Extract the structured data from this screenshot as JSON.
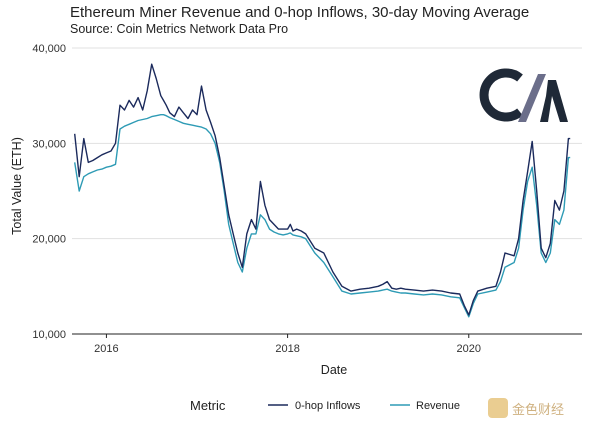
{
  "header": {
    "title": "Ethereum Miner Revenue and 0-hop Inflows, 30-day Moving Average",
    "subtitle": "Source: Coin Metrics Network Data Pro"
  },
  "logo": {
    "text": "CM",
    "colors": {
      "dark": "#1f2937",
      "accent": "#6b6e8a"
    }
  },
  "watermark": {
    "text": "金色财经"
  },
  "legend": {
    "title": "Metric"
  },
  "colors": {
    "inflows": "#1b2a5c",
    "revenue": "#2e9bb5",
    "grid": "#e1e1e1",
    "axis": "#222222"
  },
  "chart_data": {
    "type": "line",
    "xlabel": "Date",
    "ylabel": "Total Value (ETH)",
    "xlim": [
      2015.62,
      2021.25
    ],
    "ylim": [
      10000,
      40000
    ],
    "x_ticks": [
      2016,
      2018,
      2020
    ],
    "x_tick_labels": [
      "2016",
      "2018",
      "2020"
    ],
    "y_ticks": [
      10000,
      20000,
      30000,
      40000
    ],
    "y_tick_labels": [
      "10,000",
      "20,000",
      "30,000",
      "40,000"
    ],
    "grid": "horizontal",
    "legend_position": "bottom",
    "series": [
      {
        "name": "0-hop Inflows",
        "x": [
          2015.65,
          2015.7,
          2015.75,
          2015.8,
          2015.85,
          2015.9,
          2015.95,
          2016.0,
          2016.05,
          2016.1,
          2016.15,
          2016.2,
          2016.25,
          2016.3,
          2016.35,
          2016.4,
          2016.45,
          2016.5,
          2016.55,
          2016.6,
          2016.63,
          2016.66,
          2016.7,
          2016.75,
          2016.8,
          2016.85,
          2016.9,
          2016.95,
          2017.0,
          2017.05,
          2017.1,
          2017.15,
          2017.2,
          2017.25,
          2017.3,
          2017.35,
          2017.4,
          2017.45,
          2017.5,
          2017.55,
          2017.6,
          2017.65,
          2017.7,
          2017.75,
          2017.8,
          2017.85,
          2017.9,
          2017.95,
          2018.0,
          2018.03,
          2018.06,
          2018.1,
          2018.15,
          2018.2,
          2018.3,
          2018.4,
          2018.5,
          2018.6,
          2018.7,
          2018.8,
          2018.9,
          2019.0,
          2019.05,
          2019.1,
          2019.15,
          2019.2,
          2019.25,
          2019.3,
          2019.4,
          2019.5,
          2019.6,
          2019.7,
          2019.8,
          2019.9,
          2019.95,
          2020.0,
          2020.05,
          2020.1,
          2020.2,
          2020.3,
          2020.35,
          2020.4,
          2020.5,
          2020.55,
          2020.6,
          2020.65,
          2020.7,
          2020.75,
          2020.8,
          2020.85,
          2020.9,
          2020.95,
          2021.0,
          2021.05,
          2021.1,
          2021.12
        ],
        "values": [
          31000,
          26500,
          30500,
          28000,
          28200,
          28500,
          28800,
          29000,
          29200,
          30000,
          34000,
          33500,
          34500,
          33800,
          34800,
          33500,
          35500,
          38300,
          36800,
          35000,
          34500,
          34000,
          33200,
          32800,
          33800,
          33200,
          32600,
          33500,
          33000,
          36000,
          33500,
          32200,
          30800,
          28500,
          25500,
          22500,
          20500,
          18500,
          17000,
          20500,
          22000,
          21000,
          26000,
          23500,
          22000,
          21500,
          21000,
          21000,
          21000,
          21500,
          20800,
          21000,
          20800,
          20500,
          19000,
          18500,
          16500,
          15000,
          14500,
          14700,
          14800,
          15000,
          15200,
          15500,
          14800,
          14700,
          14800,
          14700,
          14600,
          14500,
          14600,
          14500,
          14300,
          14200,
          13000,
          12000,
          13500,
          14500,
          14800,
          15000,
          16500,
          18500,
          18200,
          20000,
          24000,
          27000,
          30200,
          25000,
          19000,
          18000,
          19500,
          24000,
          23000,
          25000,
          30500,
          30500
        ]
      },
      {
        "name": "Revenue",
        "x": [
          2015.65,
          2015.7,
          2015.75,
          2015.8,
          2015.85,
          2015.9,
          2015.95,
          2016.0,
          2016.05,
          2016.1,
          2016.15,
          2016.2,
          2016.25,
          2016.3,
          2016.35,
          2016.4,
          2016.45,
          2016.5,
          2016.55,
          2016.6,
          2016.63,
          2016.66,
          2016.7,
          2016.75,
          2016.8,
          2016.85,
          2016.9,
          2016.95,
          2017.0,
          2017.05,
          2017.1,
          2017.15,
          2017.2,
          2017.25,
          2017.3,
          2017.35,
          2017.4,
          2017.45,
          2017.5,
          2017.55,
          2017.6,
          2017.65,
          2017.7,
          2017.75,
          2017.8,
          2017.85,
          2017.9,
          2017.95,
          2018.0,
          2018.03,
          2018.06,
          2018.1,
          2018.15,
          2018.2,
          2018.3,
          2018.4,
          2018.5,
          2018.6,
          2018.7,
          2018.8,
          2018.9,
          2019.0,
          2019.05,
          2019.1,
          2019.15,
          2019.2,
          2019.25,
          2019.3,
          2019.4,
          2019.5,
          2019.6,
          2019.7,
          2019.8,
          2019.9,
          2019.95,
          2020.0,
          2020.05,
          2020.1,
          2020.2,
          2020.3,
          2020.35,
          2020.4,
          2020.5,
          2020.55,
          2020.6,
          2020.65,
          2020.7,
          2020.75,
          2020.8,
          2020.85,
          2020.9,
          2020.95,
          2021.0,
          2021.05,
          2021.1,
          2021.12
        ],
        "values": [
          28000,
          25000,
          26500,
          26800,
          27000,
          27200,
          27300,
          27500,
          27600,
          27800,
          31500,
          31800,
          32000,
          32200,
          32400,
          32500,
          32600,
          32800,
          32900,
          33000,
          33000,
          32900,
          32700,
          32500,
          32300,
          32100,
          32000,
          31900,
          31800,
          31700,
          31500,
          31000,
          30000,
          28000,
          25000,
          21500,
          19500,
          17500,
          16500,
          19000,
          20500,
          20500,
          22500,
          22000,
          21000,
          20700,
          20500,
          20400,
          20500,
          20600,
          20400,
          20300,
          20200,
          20000,
          18500,
          17500,
          16000,
          14500,
          14200,
          14300,
          14400,
          14500,
          14600,
          14700,
          14500,
          14400,
          14300,
          14300,
          14200,
          14100,
          14200,
          14100,
          13900,
          13800,
          12800,
          11800,
          13200,
          14200,
          14400,
          14600,
          15500,
          17000,
          17500,
          19000,
          23000,
          26000,
          27500,
          23500,
          18500,
          17500,
          18500,
          22000,
          21500,
          23000,
          28500,
          28500
        ]
      }
    ]
  }
}
